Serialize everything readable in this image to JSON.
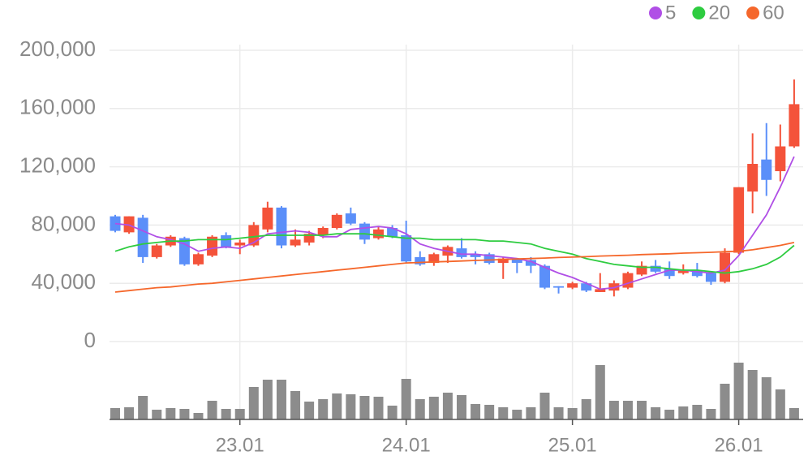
{
  "chart_data": {
    "type": "candlestick",
    "categories": [
      null,
      null,
      null,
      null,
      null,
      null,
      null,
      null,
      null,
      "23.01",
      null,
      null,
      null,
      null,
      null,
      null,
      null,
      null,
      null,
      null,
      null,
      "24.01",
      null,
      null,
      null,
      null,
      null,
      null,
      null,
      null,
      null,
      null,
      null,
      "25.01",
      null,
      null,
      null,
      null,
      null,
      null,
      null,
      null,
      null,
      null,
      null,
      "26.01",
      null,
      null,
      null,
      null
    ],
    "open": [
      86000,
      75000,
      85000,
      58000,
      66000,
      71000,
      53000,
      59000,
      73000,
      66000,
      66000,
      77000,
      92000,
      66000,
      68000,
      73000,
      78000,
      88000,
      81000,
      71000,
      78000,
      73000,
      58000,
      54000,
      59000,
      64000,
      60000,
      60000,
      54000,
      57000,
      56000,
      52000,
      38000,
      37000,
      40000,
      34000,
      35000,
      37000,
      46000,
      52000,
      50000,
      47000,
      49000,
      47000,
      41000,
      61000,
      103000,
      125000,
      117000,
      134000
    ],
    "high": [
      87000,
      86000,
      87000,
      67000,
      73000,
      72000,
      61000,
      73000,
      75000,
      70000,
      82000,
      96000,
      93000,
      77000,
      76000,
      79000,
      88000,
      92000,
      82000,
      79000,
      80000,
      83000,
      62000,
      61000,
      66000,
      71000,
      62000,
      61000,
      58000,
      57000,
      58000,
      53000,
      38000,
      41000,
      41000,
      47000,
      42000,
      48000,
      55000,
      56000,
      55000,
      53000,
      54000,
      48000,
      64000,
      106000,
      143000,
      150000,
      149000,
      180000
    ],
    "low": [
      75000,
      74000,
      54000,
      57000,
      65000,
      52000,
      52000,
      58000,
      64000,
      60000,
      65000,
      75000,
      64000,
      65000,
      66000,
      71000,
      77000,
      80000,
      67000,
      70000,
      71000,
      54000,
      52000,
      52000,
      54000,
      57000,
      53000,
      53000,
      43000,
      47000,
      47000,
      36000,
      33000,
      36000,
      34000,
      34000,
      31000,
      36000,
      45000,
      47000,
      43000,
      46000,
      44000,
      39000,
      40000,
      60000,
      88000,
      100000,
      110000,
      133000
    ],
    "close": [
      76000,
      86000,
      58000,
      66000,
      72000,
      53000,
      60000,
      72000,
      65000,
      68000,
      80000,
      92000,
      66000,
      70000,
      74000,
      78000,
      87000,
      81000,
      70000,
      77000,
      72000,
      55000,
      53000,
      60000,
      65000,
      58000,
      58000,
      54000,
      57000,
      54000,
      52000,
      37000,
      37000,
      40000,
      35000,
      36000,
      40000,
      47000,
      52000,
      48000,
      45000,
      49000,
      45000,
      41000,
      61000,
      106000,
      122000,
      111000,
      134000,
      163000
    ],
    "volume": [
      14,
      15,
      29,
      12,
      14,
      13,
      8,
      23,
      13,
      13,
      40,
      49,
      49,
      35,
      22,
      25,
      32,
      31,
      29,
      28,
      17,
      50,
      25,
      28,
      33,
      30,
      19,
      18,
      15,
      12,
      15,
      33,
      15,
      14,
      25,
      67,
      23,
      23,
      23,
      15,
      12,
      16,
      18,
      13,
      44,
      70,
      61,
      52,
      37,
      14
    ],
    "up_color": "#f4533a",
    "down_color": "#5b8ff9",
    "volume_color": "#8c8c8c",
    "series": [
      {
        "name": "5",
        "color": "#b04fe6",
        "values": [
          81000,
          80000,
          76000,
          72000,
          70000,
          67000,
          62000,
          64000,
          65000,
          64000,
          68000,
          74000,
          75000,
          76000,
          75000,
          72000,
          72000,
          77000,
          78000,
          79000,
          78000,
          74000,
          67000,
          64000,
          62000,
          60000,
          60000,
          59000,
          58000,
          57000,
          55000,
          51000,
          47000,
          44000,
          40000,
          36000,
          37000,
          40000,
          43000,
          46000,
          49000,
          49000,
          48000,
          47000,
          49000,
          59000,
          73000,
          87000,
          106000,
          127000
        ]
      },
      {
        "name": "20",
        "color": "#2ecc40",
        "values": [
          62000,
          65000,
          67000,
          68000,
          69000,
          69000,
          70000,
          70000,
          70000,
          71000,
          72000,
          73000,
          73000,
          73000,
          73000,
          73000,
          74000,
          74000,
          74000,
          73000,
          72000,
          71000,
          71000,
          70000,
          70000,
          70000,
          70000,
          69000,
          69000,
          68000,
          67000,
          64000,
          62000,
          60000,
          57000,
          55000,
          53000,
          52000,
          51000,
          51000,
          50000,
          49000,
          49000,
          48000,
          47000,
          48000,
          50000,
          53000,
          58000,
          66000
        ]
      },
      {
        "name": "60",
        "color": "#f5672b",
        "values": [
          34000,
          35000,
          36000,
          37000,
          37500,
          38500,
          39500,
          40000,
          41000,
          42000,
          43000,
          44000,
          45000,
          46000,
          47000,
          48000,
          49000,
          50000,
          51000,
          52000,
          53000,
          54000,
          54300,
          54700,
          55000,
          55300,
          55700,
          56000,
          56300,
          56700,
          57000,
          57300,
          57700,
          58000,
          58300,
          58700,
          59000,
          59300,
          59700,
          60000,
          60300,
          60700,
          61000,
          61300,
          61700,
          62000,
          63000,
          64500,
          66000,
          68000
        ]
      }
    ],
    "ylim": [
      0,
      200000
    ],
    "yticks": [
      0,
      {
        "value": 40000,
        "label": "40,000"
      },
      {
        "value": 80000,
        "label": "80,000"
      },
      {
        "value": 120000,
        "label": "120,000"
      },
      {
        "value": 160000,
        "label": "160,000"
      },
      {
        "value": 200000,
        "label": "200,000"
      }
    ],
    "grid": true
  }
}
